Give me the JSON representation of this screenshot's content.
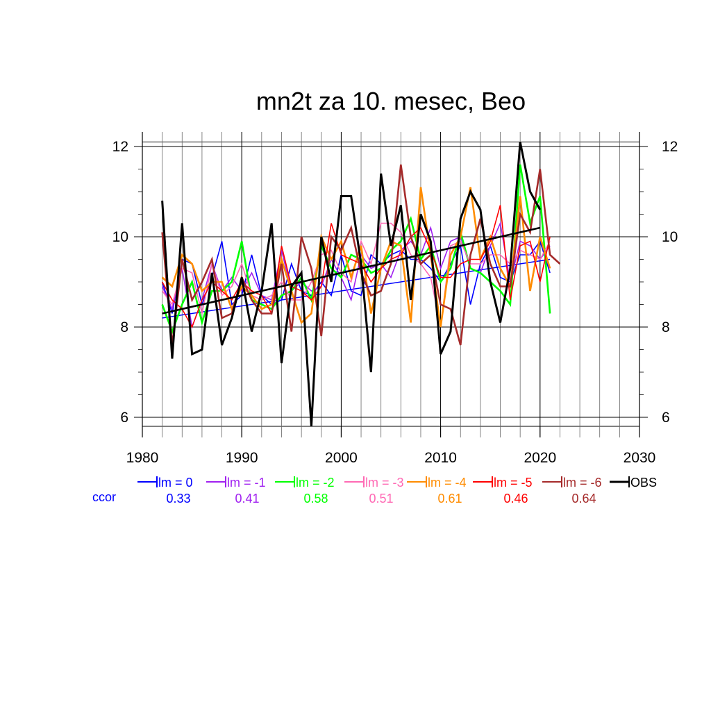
{
  "chart_data": {
    "type": "line",
    "title": "mn2t za 10. mesec, Beo",
    "xlabel": "",
    "ylabel": "",
    "xlim": [
      1980,
      2030
    ],
    "ylim": [
      5.8,
      12.1
    ],
    "xticks": [
      1980,
      1990,
      2000,
      2010,
      2020,
      2030
    ],
    "xtick_labels": [
      "1980",
      "1990",
      "2000",
      "2010",
      "2020",
      "2030"
    ],
    "yticks": [
      6,
      8,
      10,
      12
    ],
    "ytick_labels": [
      "6",
      "8",
      "10",
      "12"
    ],
    "grid": true,
    "legend_position": "bottom",
    "ccor_label": "ccor",
    "series": [
      {
        "name": "lm = 0",
        "color": "#0000ff",
        "ccor": "0.33",
        "x_start": 1982,
        "values": [
          9.0,
          8.3,
          9.5,
          9.4,
          8.5,
          9.1,
          9.9,
          8.5,
          8.7,
          9.6,
          8.7,
          8.5,
          8.6,
          9.4,
          8.8,
          8.7,
          9.0,
          8.7,
          9.6,
          8.8,
          8.7,
          9.6,
          9.4,
          9.6,
          9.7,
          9.5,
          9.5,
          9.3,
          9.0,
          9.4,
          9.8,
          8.5,
          9.4,
          9.8,
          9.1,
          9.0,
          9.6,
          9.6,
          9.9,
          9.2
        ],
        "trend": [
          8.2,
          9.5
        ]
      },
      {
        "name": "lm = -1",
        "color": "#a020f0",
        "ccor": "0.41",
        "x_start": 1982,
        "values": [
          8.9,
          8.4,
          9.3,
          8.0,
          8.6,
          9.4,
          8.8,
          9.1,
          8.8,
          9.2,
          8.7,
          8.6,
          9.7,
          8.8,
          9.0,
          8.8,
          8.9,
          9.5,
          9.1,
          8.6,
          9.6,
          9.3,
          9.4,
          9.1,
          9.7,
          9.9,
          9.6,
          10.2,
          9.3,
          9.9,
          10.0,
          9.3,
          9.2,
          9.8,
          10.3,
          9.0,
          9.9,
          9.8,
          9.5,
          9.8
        ],
        "trend": null
      },
      {
        "name": "lm = -2",
        "color": "#00ff00",
        "ccor": "0.58",
        "x_start": 1982,
        "values": [
          8.5,
          7.9,
          8.5,
          9.0,
          8.1,
          8.8,
          8.8,
          9.0,
          9.9,
          8.6,
          8.5,
          8.4,
          8.7,
          8.8,
          9.1,
          8.6,
          9.8,
          9.3,
          9.1,
          9.6,
          9.5,
          9.2,
          9.3,
          9.7,
          9.9,
          10.4,
          9.5,
          9.8,
          9.0,
          9.3,
          10.1,
          9.3,
          9.2,
          9.0,
          8.8,
          8.5,
          11.6,
          10.3,
          10.9,
          8.3
        ],
        "trend": null
      },
      {
        "name": "lm = -3",
        "color": "#ff69b4",
        "ccor": "0.51",
        "x_start": 1982,
        "values": [
          8.8,
          8.5,
          9.3,
          9.2,
          8.3,
          9.4,
          8.7,
          8.9,
          9.4,
          8.7,
          8.6,
          8.7,
          9.0,
          8.6,
          8.6,
          9.0,
          9.6,
          9.7,
          9.2,
          9.0,
          9.9,
          9.4,
          10.3,
          10.3,
          10.1,
          9.6,
          9.4,
          9.1,
          8.0,
          9.8,
          9.9,
          9.4,
          9.4,
          9.6,
          9.6,
          9.4,
          9.7,
          9.6,
          9.5,
          9.9
        ],
        "trend": null
      },
      {
        "name": "lm = -4",
        "color": "#ff8c00",
        "ccor": "0.61",
        "x_start": 1982,
        "values": [
          9.1,
          8.9,
          9.6,
          9.4,
          8.8,
          9.0,
          9.0,
          8.4,
          8.9,
          8.7,
          8.4,
          8.5,
          9.5,
          8.8,
          8.1,
          8.3,
          10.0,
          9.5,
          9.9,
          9.1,
          9.8,
          8.3,
          9.3,
          9.9,
          9.8,
          8.1,
          11.1,
          9.6,
          8.0,
          9.6,
          10.0,
          11.1,
          9.5,
          10.0,
          9.3,
          8.9,
          10.9,
          8.8,
          10.0,
          9.3
        ],
        "trend": null
      },
      {
        "name": "lm = -5",
        "color": "#ff0000",
        "ccor": "0.46",
        "x_start": 1982,
        "values": [
          9.0,
          8.6,
          8.4,
          8.0,
          8.6,
          9.0,
          8.8,
          8.6,
          9.0,
          8.8,
          8.7,
          8.3,
          9.8,
          8.9,
          8.8,
          8.6,
          8.9,
          10.3,
          9.6,
          9.5,
          9.4,
          9.0,
          9.3,
          9.5,
          9.6,
          10.0,
          10.2,
          9.7,
          9.1,
          9.1,
          9.4,
          9.5,
          9.5,
          9.9,
          10.7,
          8.6,
          9.8,
          9.9,
          9.0,
          10.0
        ],
        "trend": null
      },
      {
        "name": "lm = -6",
        "color": "#a52a2a",
        "ccor": "0.64",
        "x_start": 1982,
        "values": [
          10.1,
          7.6,
          9.5,
          8.6,
          9.0,
          9.5,
          8.2,
          8.3,
          9.1,
          8.6,
          8.3,
          8.3,
          9.4,
          7.9,
          10.0,
          9.3,
          7.8,
          10.0,
          9.7,
          10.2,
          9.2,
          8.7,
          8.8,
          9.4,
          11.6,
          10.0,
          9.4,
          9.6,
          8.5,
          8.4,
          7.6,
          9.6,
          10.4,
          9.4,
          8.9,
          8.9,
          10.5,
          10.1,
          11.5,
          9.6,
          9.4
        ],
        "trend": null
      },
      {
        "name": "OBS",
        "color": "#000000",
        "ccor": "",
        "x_start": 1982,
        "values": [
          10.8,
          7.3,
          10.3,
          7.4,
          7.5,
          9.2,
          7.6,
          8.2,
          9.1,
          7.9,
          8.8,
          10.3,
          7.2,
          8.9,
          9.2,
          5.8,
          10.0,
          9.0,
          10.9,
          10.9,
          9.4,
          7.0,
          11.4,
          9.8,
          10.7,
          8.6,
          10.5,
          9.9,
          7.4,
          7.9,
          10.4,
          11.0,
          10.6,
          9.0,
          8.1,
          9.3,
          12.1,
          11.0,
          10.6
        ],
        "trend": [
          8.3,
          10.2
        ]
      }
    ]
  }
}
